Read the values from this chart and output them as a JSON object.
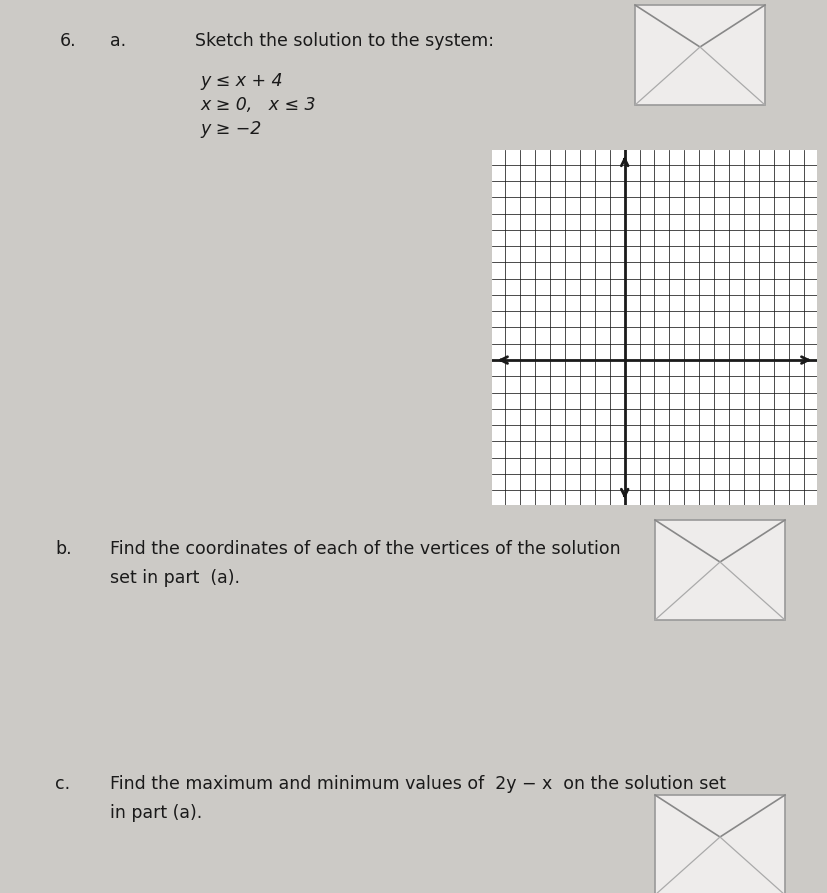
{
  "background_color": "#cccac6",
  "title_number": "6.",
  "part_a_label": "a.",
  "part_a_title": "Sketch the solution to the system:",
  "part_a_lines": [
    "y ≤ x + 4",
    "x ≥ 0,   x ≤ 3",
    "y ≥ −2"
  ],
  "part_b_label": "b.",
  "part_b_text": "Find the coordinates of each of the vertices of the solution\nset in part  (a).",
  "part_c_label": "c.",
  "part_c_text": "Find the maximum and minimum values of  2y − x  on the solution set\nin part (a).",
  "grid_color": "#1a1a1a",
  "grid_linewidth": 0.55,
  "axis_linewidth": 2.0
}
